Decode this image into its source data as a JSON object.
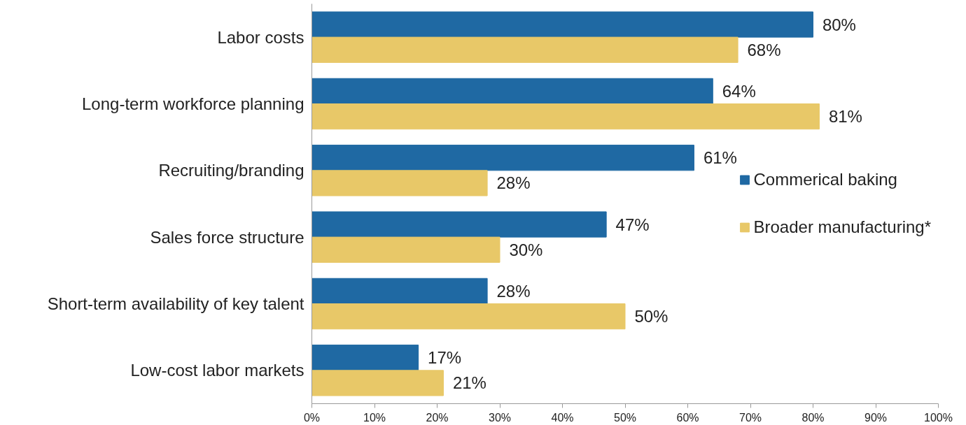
{
  "chart_data": {
    "type": "bar",
    "orientation": "horizontal",
    "categories": [
      "Labor costs",
      "Long-term workforce planning",
      "Recruiting/branding",
      "Sales force structure",
      "Short-term availability of key talent",
      "Low-cost labor markets"
    ],
    "series": [
      {
        "name": "Commerical baking",
        "color": "#1f69a3",
        "values": [
          80,
          64,
          61,
          47,
          28,
          17
        ],
        "value_labels": [
          "80%",
          "64%",
          "61%",
          "47%",
          "28%",
          "17%"
        ]
      },
      {
        "name": "Broader manufacturing*",
        "color": "#e8c868",
        "values": [
          68,
          81,
          28,
          30,
          50,
          21
        ],
        "value_labels": [
          "68%",
          "81%",
          "28%",
          "30%",
          "50%",
          "21%"
        ]
      }
    ],
    "xlim": [
      0,
      100
    ],
    "xticks": [
      {
        "value": 0,
        "label": "0%"
      },
      {
        "value": 10,
        "label": "10%"
      },
      {
        "value": 20,
        "label": "20%"
      },
      {
        "value": 30,
        "label": "30%"
      },
      {
        "value": 40,
        "label": "40%"
      },
      {
        "value": 50,
        "label": "50%"
      },
      {
        "value": 60,
        "label": "60%"
      },
      {
        "value": 70,
        "label": "70%"
      },
      {
        "value": 80,
        "label": "80%"
      },
      {
        "value": 90,
        "label": "90%"
      },
      {
        "value": 100,
        "label": "100%"
      }
    ],
    "legend": "right",
    "grid": false
  }
}
